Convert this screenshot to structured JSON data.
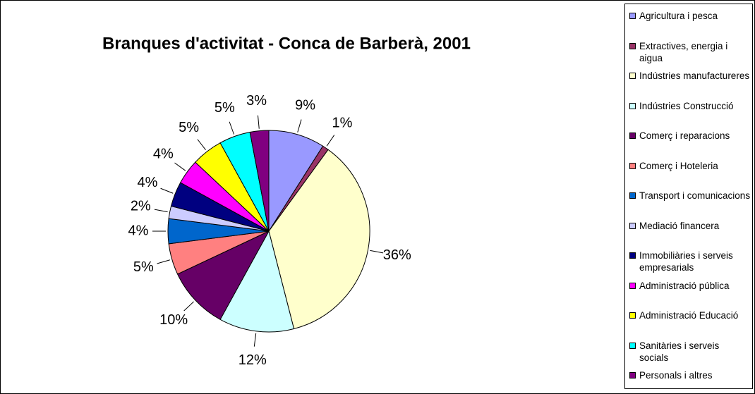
{
  "chart_data": {
    "type": "pie",
    "title": "Branques d'activitat - Conca de Barberà, 2001",
    "categories": [
      "Agricultura i pesca",
      "Extractives, energia i aigua",
      "Indústries manufactureres",
      "Indústries Construcció",
      "Comerç i reparacions",
      "Comerç i Hoteleria",
      "Transport i comunicacions",
      "Mediació financera",
      "Immobiliàries i serveis empresarials",
      "Administració pública",
      "Administració Educació",
      "Sanitàries i serveis socials",
      "Personals i altres"
    ],
    "values": [
      9,
      1,
      36,
      12,
      10,
      5,
      4,
      2,
      4,
      4,
      5,
      5,
      3
    ],
    "value_labels": [
      "9%",
      "1%",
      "36%",
      "12%",
      "10%",
      "5%",
      "4%",
      "2%",
      "4%",
      "4%",
      "5%",
      "5%",
      "3%"
    ],
    "colors": [
      "#9999ff",
      "#993366",
      "#ffffcc",
      "#ccffff",
      "#660066",
      "#ff8080",
      "#0066cc",
      "#ccccff",
      "#000080",
      "#ff00ff",
      "#ffff00",
      "#00ffff",
      "#800080"
    ],
    "legend": "right"
  }
}
